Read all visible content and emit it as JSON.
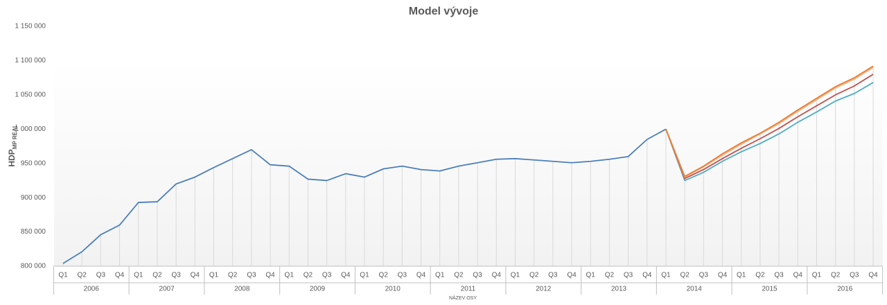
{
  "chart_data": {
    "type": "line",
    "title": "Model vývoje",
    "y_label": "HDP",
    "y_label_subscript": "MP REAL",
    "x_label": "NÁZEV OSY",
    "categories": [
      "Q1",
      "Q2",
      "Q3",
      "Q4",
      "Q1",
      "Q2",
      "Q3",
      "Q4",
      "Q1",
      "Q2",
      "Q3",
      "Q4",
      "Q1",
      "Q2",
      "Q3",
      "Q4",
      "Q1",
      "Q2",
      "Q3",
      "Q4",
      "Q1",
      "Q2",
      "Q3",
      "Q4",
      "Q1",
      "Q2",
      "Q3",
      "Q4",
      "Q1",
      "Q2",
      "Q3",
      "Q4",
      "Q1",
      "Q2",
      "Q3",
      "Q4",
      "Q1",
      "Q2",
      "Q3",
      "Q4",
      "Q1",
      "Q2",
      "Q3",
      "Q4"
    ],
    "category_groups": [
      "2006",
      "2007",
      "2008",
      "2009",
      "2010",
      "2011",
      "2012",
      "2013",
      "2014",
      "2015",
      "2016"
    ],
    "series": [
      {
        "color": "#4a7ebb",
        "values": [
          804000,
          821000,
          846000,
          860000,
          893000,
          894000,
          920000,
          930000,
          944000,
          957000,
          970000,
          948000,
          946000,
          927000,
          925000,
          935000,
          930000,
          942000,
          946000,
          941000,
          939000,
          946000,
          951000,
          956000,
          957000,
          955000,
          953000,
          951000,
          953000,
          956000,
          960000,
          985000,
          1000000,
          null,
          null,
          null,
          null,
          null,
          null,
          null,
          null,
          null,
          null,
          null
        ]
      },
      {
        "color": "#ed7d31",
        "values": [
          null,
          null,
          null,
          null,
          null,
          null,
          null,
          null,
          null,
          null,
          null,
          null,
          null,
          null,
          null,
          null,
          null,
          null,
          null,
          null,
          null,
          null,
          null,
          null,
          null,
          null,
          null,
          null,
          null,
          null,
          null,
          null,
          1000000,
          931000,
          946000,
          964000,
          980000,
          994000,
          1010000,
          1028000,
          1045000,
          1062000,
          1075000,
          1092000
        ]
      },
      {
        "color": "#f4b183",
        "values": [
          null,
          null,
          null,
          null,
          null,
          null,
          null,
          null,
          null,
          null,
          null,
          null,
          null,
          null,
          null,
          null,
          null,
          null,
          null,
          null,
          null,
          null,
          null,
          null,
          null,
          null,
          null,
          null,
          null,
          null,
          null,
          null,
          1000000,
          930000,
          945000,
          962000,
          978000,
          993000,
          1008000,
          1026000,
          1043000,
          1060000,
          1073000,
          1090000
        ]
      },
      {
        "color": "#c0504d",
        "values": [
          null,
          null,
          null,
          null,
          null,
          null,
          null,
          null,
          null,
          null,
          null,
          null,
          null,
          null,
          null,
          null,
          null,
          null,
          null,
          null,
          null,
          null,
          null,
          null,
          null,
          null,
          null,
          null,
          null,
          null,
          null,
          null,
          1000000,
          928000,
          941000,
          957000,
          972000,
          986000,
          1001000,
          1018000,
          1034000,
          1050000,
          1063000,
          1080000
        ]
      },
      {
        "color": "#4bacc6",
        "values": [
          null,
          null,
          null,
          null,
          null,
          null,
          null,
          null,
          null,
          null,
          null,
          null,
          null,
          null,
          null,
          null,
          null,
          null,
          null,
          null,
          null,
          null,
          null,
          null,
          null,
          null,
          null,
          null,
          null,
          null,
          null,
          null,
          1000000,
          925000,
          937000,
          953000,
          967000,
          979000,
          993000,
          1010000,
          1025000,
          1041000,
          1052000,
          1068000
        ]
      }
    ],
    "ylim": [
      800000,
      1150000
    ],
    "yticks": [
      {
        "value": 800000,
        "label": "800 000"
      },
      {
        "value": 850000,
        "label": "850 000"
      },
      {
        "value": 900000,
        "label": "900 000"
      },
      {
        "value": 950000,
        "label": "950 000"
      },
      {
        "value": 1000000,
        "label": "1 000 000"
      },
      {
        "value": 1050000,
        "label": "1 050 000"
      },
      {
        "value": 1100000,
        "label": "1 100 000"
      },
      {
        "value": 1150000,
        "label": "1 150 000"
      }
    ],
    "drop_lines": true
  }
}
